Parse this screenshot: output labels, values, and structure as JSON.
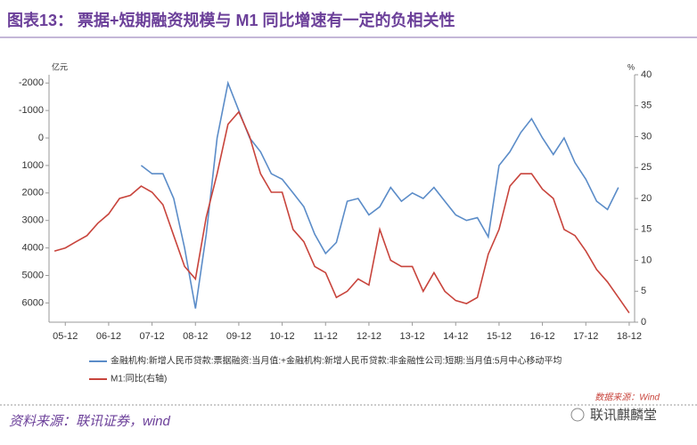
{
  "chart_data": {
    "type": "line",
    "title": "图表13： 票据+短期融资规模与 M1 同比增速有一定的负相关性",
    "y_label": "亿元",
    "y2_label": "%",
    "source": "资料来源：联讯证券，wind",
    "data_source": "数据来源：Wind",
    "watermark": "联讯麒麟堂",
    "categories": [
      null,
      "05-12",
      null,
      null,
      null,
      "06-12",
      null,
      null,
      null,
      "07-12",
      null,
      null,
      null,
      "08-12",
      null,
      null,
      null,
      "09-12",
      null,
      null,
      null,
      "10-12",
      null,
      null,
      null,
      "11-12",
      null,
      null,
      null,
      "12-12",
      null,
      null,
      null,
      "13-12",
      null,
      null,
      null,
      "14-12",
      null,
      null,
      null,
      "15-12",
      null,
      null,
      null,
      "16-12",
      null,
      null,
      null,
      "17-12",
      null,
      null,
      null,
      "18-12"
    ],
    "series": [
      {
        "name": "金融机构:新增人民币贷款:票据融资:当月值:+金融机构:新增人民币贷款:非金融性公司:短期:当月值:5月中心移动平均",
        "color": "#5b8cc8",
        "values": [
          null,
          null,
          null,
          null,
          null,
          null,
          null,
          null,
          1000,
          1300,
          1300,
          2200,
          4000,
          6200,
          3500,
          0,
          -2000,
          -1000,
          0,
          500,
          1300,
          1500,
          2000,
          2500,
          3500,
          4200,
          3800,
          2300,
          2200,
          2800,
          2500,
          1800,
          2300,
          2000,
          2200,
          1800,
          2300,
          2800,
          3000,
          2900,
          3600,
          1000,
          500,
          -200,
          -700,
          0,
          600,
          0,
          900,
          1500,
          2300,
          2600,
          1800,
          null
        ]
      },
      {
        "name": "M1:同比(右轴)",
        "color": "#c8443c",
        "axis": "y2",
        "values": [
          11.5,
          12,
          13,
          14,
          16,
          17.5,
          20,
          20.5,
          22,
          21,
          19,
          14,
          9,
          7,
          17,
          24,
          32,
          34,
          30,
          24,
          21,
          21,
          15,
          13,
          9,
          8,
          4,
          5,
          7,
          6,
          15,
          10,
          9,
          9,
          5,
          8,
          5,
          3.5,
          3,
          4,
          11,
          15,
          22,
          24,
          24,
          21.5,
          20,
          15,
          14,
          11.5,
          8.5,
          6.5,
          4,
          1.5
        ]
      }
    ],
    "ylim": [
      6700,
      -2300
    ],
    "yticks": [
      -2000,
      -1000,
      0,
      1000,
      2000,
      3000,
      4000,
      5000,
      6000
    ],
    "y2lim": [
      0,
      40
    ],
    "y2ticks": [
      0,
      5,
      10,
      15,
      20,
      25,
      30,
      35,
      40
    ],
    "grid": false,
    "legend": "bottom"
  }
}
